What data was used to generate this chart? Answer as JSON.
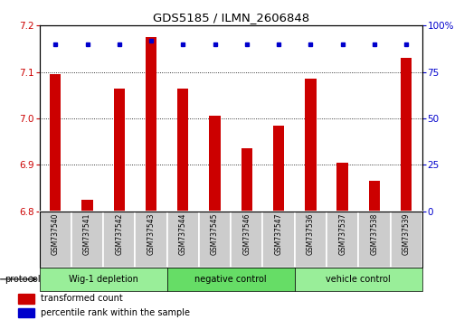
{
  "title": "GDS5185 / ILMN_2606848",
  "samples": [
    "GSM737540",
    "GSM737541",
    "GSM737542",
    "GSM737543",
    "GSM737544",
    "GSM737545",
    "GSM737546",
    "GSM737547",
    "GSM737536",
    "GSM737537",
    "GSM737538",
    "GSM737539"
  ],
  "transformed_counts": [
    7.095,
    6.825,
    7.065,
    7.175,
    7.065,
    7.005,
    6.935,
    6.985,
    7.085,
    6.905,
    6.865,
    7.13
  ],
  "percentile_rank_pct": [
    90,
    90,
    90,
    92,
    90,
    90,
    90,
    90,
    90,
    90,
    90,
    90
  ],
  "ylim_left": [
    6.8,
    7.2
  ],
  "ylim_right": [
    0,
    100
  ],
  "bar_color": "#cc0000",
  "dot_color": "#0000cc",
  "groups": [
    {
      "label": "Wig-1 depletion",
      "indices": [
        0,
        1,
        2,
        3
      ],
      "color": "#99ee99"
    },
    {
      "label": "negative control",
      "indices": [
        4,
        5,
        6,
        7
      ],
      "color": "#66dd66"
    },
    {
      "label": "vehicle control",
      "indices": [
        8,
        9,
        10,
        11
      ],
      "color": "#99ee99"
    }
  ],
  "group_box_color": "#cccccc",
  "yticks_left": [
    6.8,
    6.9,
    7.0,
    7.1,
    7.2
  ],
  "yticks_right": [
    0,
    25,
    50,
    75,
    100
  ],
  "legend_red_label": "transformed count",
  "legend_blue_label": "percentile rank within the sample",
  "protocol_label": "protocol"
}
